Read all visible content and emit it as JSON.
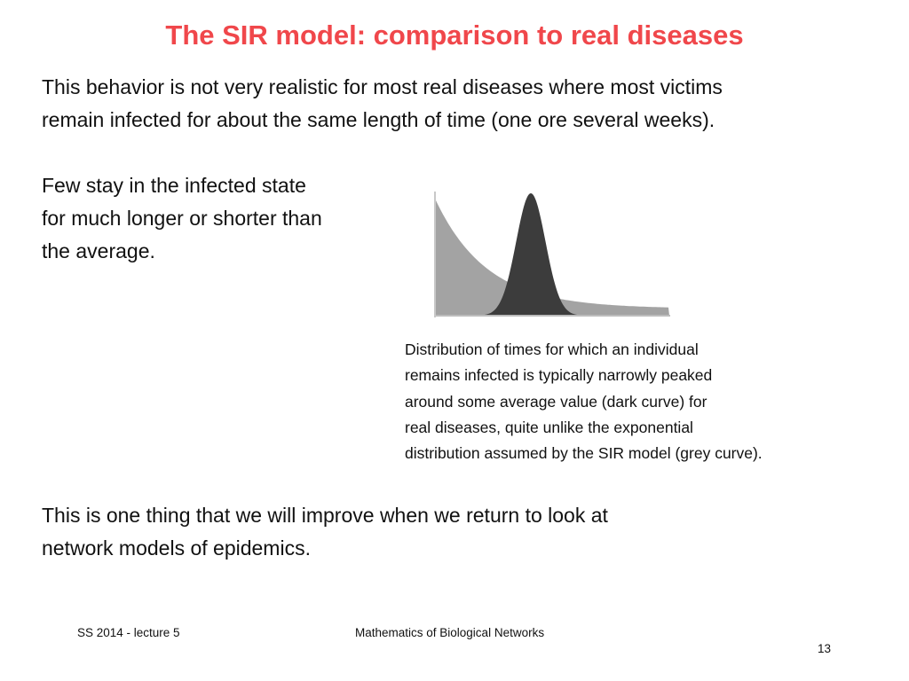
{
  "slide": {
    "title": "The SIR model: comparison to real diseases",
    "title_color": "#f0474b",
    "paragraph1": [
      "This behavior is not very realistic for most real diseases where most victims",
      "remain infected for about the same length of time (one ore several weeks)."
    ],
    "paragraph2": [
      "Few stay in the infected state",
      "for much longer or shorter than",
      "the average."
    ],
    "caption": [
      "Distribution of times for which an individual",
      "remains infected is typically narrowly peaked",
      "around some average value (dark curve) for",
      "real diseases, quite unlike the exponential",
      "distribution assumed by the SIR model (grey curve)."
    ],
    "paragraph3": [
      "This is one thing that we will improve when we return to look at",
      "network models of epidemics."
    ]
  },
  "figure": {
    "exponential_curve_color": "#a3a3a3",
    "peaked_curve_color": "#3c3c3c"
  },
  "footer": {
    "left": "SS 2014 - lecture 5",
    "center": "Mathematics of Biological Networks",
    "page_number": "13"
  }
}
